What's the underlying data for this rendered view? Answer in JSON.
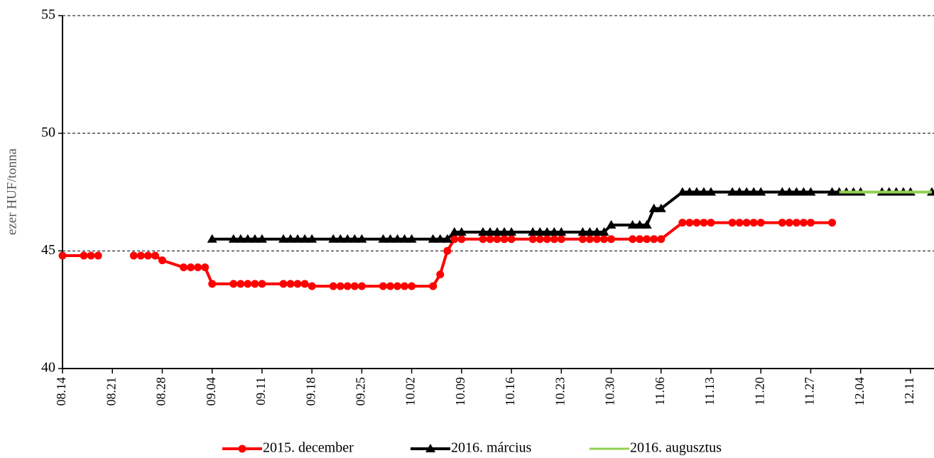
{
  "chart_data": {
    "type": "line",
    "y_label": "ezer HUF/tonna",
    "x": [
      "08.14",
      "08.17",
      "08.18",
      "08.19",
      "08.20",
      "08.21",
      "08.24",
      "08.25",
      "08.26",
      "08.27",
      "08.28",
      "08.31",
      "09.01",
      "09.02",
      "09.03",
      "09.04",
      "09.07",
      "09.08",
      "09.09",
      "09.10",
      "09.11",
      "09.14",
      "09.15",
      "09.16",
      "09.17",
      "09.18",
      "09.21",
      "09.22",
      "09.23",
      "09.24",
      "09.25",
      "09.28",
      "09.29",
      "09.30",
      "10.01",
      "10.02",
      "10.05",
      "10.06",
      "10.07",
      "10.08",
      "10.09",
      "10.12",
      "10.13",
      "10.14",
      "10.15",
      "10.16",
      "10.19",
      "10.20",
      "10.21",
      "10.22",
      "10.23",
      "10.26",
      "10.27",
      "10.28",
      "10.29",
      "10.30",
      "11.02",
      "11.03",
      "11.04",
      "11.05",
      "11.06",
      "11.09",
      "11.10",
      "11.11",
      "11.12",
      "11.13",
      "11.16",
      "11.17",
      "11.18",
      "11.19",
      "11.20",
      "11.23",
      "11.24",
      "11.25",
      "11.26",
      "11.27",
      "11.30",
      "12.01",
      "12.02",
      "12.03",
      "12.04",
      "12.07",
      "12.08",
      "12.09",
      "12.10",
      "12.11",
      "12.14"
    ],
    "series": [
      {
        "name": "2015. december",
        "color": "#ff0000",
        "marker": "circle",
        "values": [
          44.8,
          44.8,
          44.8,
          44.8,
          null,
          null,
          44.8,
          44.8,
          44.8,
          44.8,
          44.6,
          44.3,
          44.3,
          44.3,
          44.3,
          43.6,
          43.6,
          43.6,
          43.6,
          43.6,
          43.6,
          43.6,
          43.6,
          43.6,
          43.6,
          43.5,
          43.5,
          43.5,
          43.5,
          43.5,
          43.5,
          43.5,
          43.5,
          43.5,
          43.5,
          43.5,
          43.5,
          44.0,
          45.0,
          45.5,
          45.5,
          45.5,
          45.5,
          45.5,
          45.5,
          45.5,
          45.5,
          45.5,
          45.5,
          45.5,
          45.5,
          45.5,
          45.5,
          45.5,
          45.5,
          45.5,
          45.5,
          45.5,
          45.5,
          45.5,
          45.5,
          46.2,
          46.2,
          46.2,
          46.2,
          46.2,
          46.2,
          46.2,
          46.2,
          46.2,
          46.2,
          46.2,
          46.2,
          46.2,
          46.2,
          46.2,
          46.2,
          null,
          null,
          null,
          null,
          null,
          null,
          null,
          null,
          null,
          null
        ]
      },
      {
        "name": "2016. március",
        "color": "#000000",
        "marker": "triangle",
        "values": [
          null,
          null,
          null,
          null,
          null,
          null,
          null,
          null,
          null,
          null,
          null,
          null,
          null,
          null,
          null,
          45.5,
          45.5,
          45.5,
          45.5,
          45.5,
          45.5,
          45.5,
          45.5,
          45.5,
          45.5,
          45.5,
          45.5,
          45.5,
          45.5,
          45.5,
          45.5,
          45.5,
          45.5,
          45.5,
          45.5,
          45.5,
          45.5,
          45.5,
          45.5,
          45.8,
          45.8,
          45.8,
          45.8,
          45.8,
          45.8,
          45.8,
          45.8,
          45.8,
          45.8,
          45.8,
          45.8,
          45.8,
          45.8,
          45.8,
          45.8,
          46.1,
          46.1,
          46.1,
          46.1,
          46.8,
          46.8,
          47.5,
          47.5,
          47.5,
          47.5,
          47.5,
          47.5,
          47.5,
          47.5,
          47.5,
          47.5,
          47.5,
          47.5,
          47.5,
          47.5,
          47.5,
          47.5,
          47.5,
          47.5,
          47.5,
          47.5,
          47.5,
          47.5,
          47.5,
          47.5,
          47.5,
          47.5
        ]
      },
      {
        "name": "2016. augusztus",
        "color": "#92d050",
        "marker": "none",
        "values": [
          null,
          null,
          null,
          null,
          null,
          null,
          null,
          null,
          null,
          null,
          null,
          null,
          null,
          null,
          null,
          null,
          null,
          null,
          null,
          null,
          null,
          null,
          null,
          null,
          null,
          null,
          null,
          null,
          null,
          null,
          null,
          null,
          null,
          null,
          null,
          null,
          null,
          null,
          null,
          null,
          null,
          null,
          null,
          null,
          null,
          null,
          null,
          null,
          null,
          null,
          null,
          null,
          null,
          null,
          null,
          null,
          null,
          null,
          null,
          null,
          null,
          null,
          null,
          null,
          null,
          null,
          null,
          null,
          null,
          null,
          null,
          null,
          null,
          null,
          null,
          null,
          null,
          47.5,
          47.5,
          47.5,
          47.5,
          47.5,
          47.5,
          47.5,
          47.5,
          47.5,
          47.5
        ]
      }
    ],
    "xlim": [
      "08.14",
      "12.14"
    ],
    "xticks": [
      "08.14",
      "08.21",
      "08.28",
      "09.04",
      "09.11",
      "09.18",
      "09.25",
      "10.02",
      "10.09",
      "10.16",
      "10.23",
      "10.30",
      "11.06",
      "11.13",
      "11.20",
      "11.27",
      "12.04",
      "12.11"
    ],
    "ylim": [
      40,
      55
    ],
    "yticks": [
      40,
      45,
      50,
      55
    ],
    "grid": true,
    "legend": "bottom"
  }
}
